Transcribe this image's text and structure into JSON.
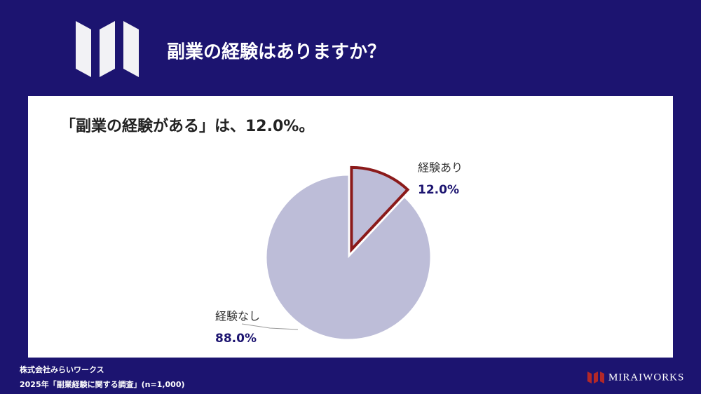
{
  "chart_data": {
    "type": "pie",
    "title": "副業の経験はありますか？",
    "subtitle": "「副業の経験がある」は、12.0%。",
    "categories": [
      "経験あり",
      "経験なし"
    ],
    "values": [
      12.0,
      88.0
    ],
    "value_labels": [
      "12.0%",
      "88.0%"
    ],
    "colors": [
      "#bdbdd8",
      "#bdbdd8"
    ],
    "edge_colors": [
      "#8b1a1a",
      "#ffffff"
    ],
    "explode": [
      true,
      false
    ]
  },
  "footer": {
    "company": "株式会社みらいワークス",
    "survey": "2025年「副業経験に関する調査」(n=1,000)"
  },
  "brand": "MIRAIWORKS"
}
